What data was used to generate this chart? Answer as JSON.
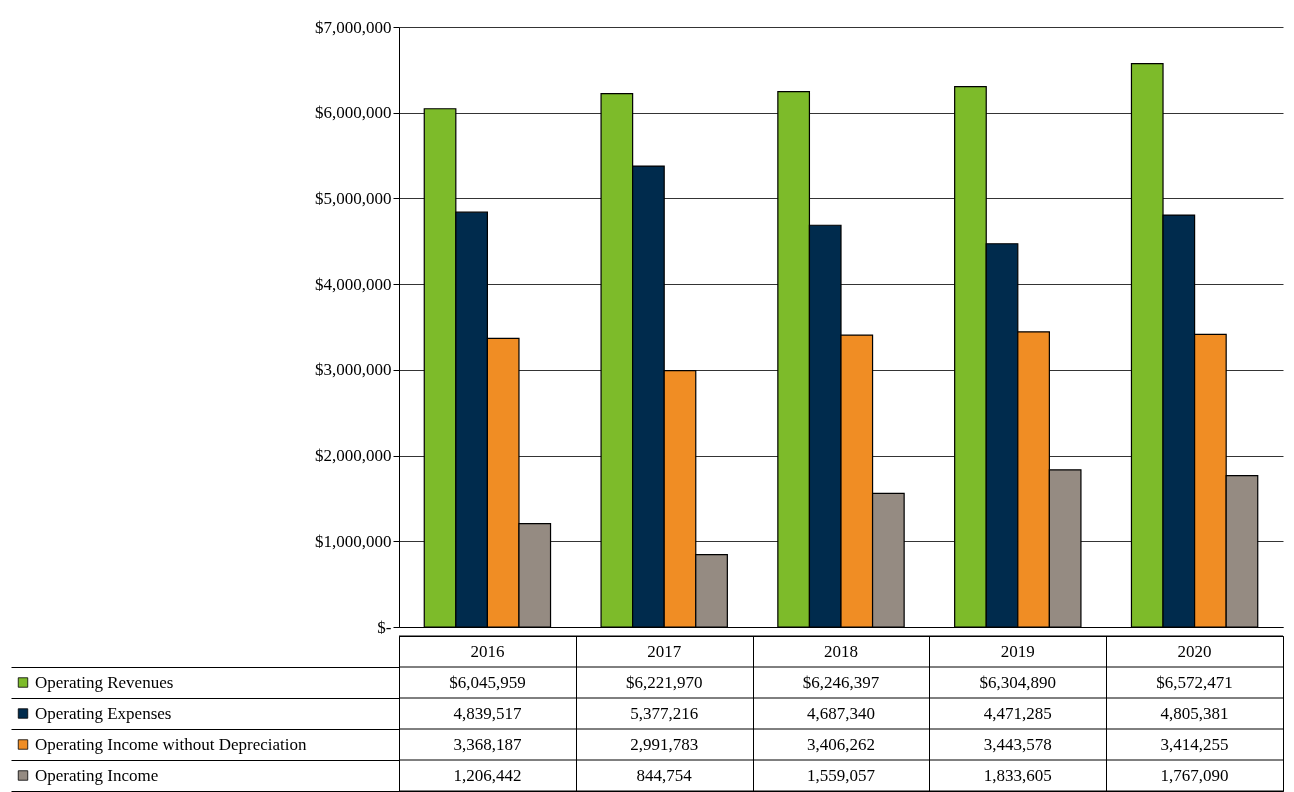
{
  "chart_data": {
    "type": "bar",
    "categories": [
      "2016",
      "2017",
      "2018",
      "2019",
      "2020"
    ],
    "series": [
      {
        "name": "Operating Revenues",
        "color": "#7dbb2a",
        "values": [
          6045959,
          6221970,
          6246397,
          6304890,
          6572471
        ],
        "value_labels": [
          "$6,045,959",
          "$6,221,970",
          "$6,246,397",
          "$6,304,890",
          "$6,572,471"
        ]
      },
      {
        "name": "Operating Expenses",
        "color": "#002b4d",
        "values": [
          4839517,
          5377216,
          4687340,
          4471285,
          4805381
        ],
        "value_labels": [
          "4,839,517",
          "5,377,216",
          "4,687,340",
          "4,471,285",
          "4,805,381"
        ]
      },
      {
        "name": "Operating Income without Depreciation",
        "color": "#f08d24",
        "values": [
          3368187,
          2991783,
          3406262,
          3443578,
          3414255
        ],
        "value_labels": [
          "3,368,187",
          "2,991,783",
          "3,406,262",
          "3,443,578",
          "3,414,255"
        ]
      },
      {
        "name": "Operating Income",
        "color": "#958b82",
        "values": [
          1206442,
          844754,
          1559057,
          1833605,
          1767090
        ],
        "value_labels": [
          "1,206,442",
          "844,754",
          "1,559,057",
          "1,833,605",
          "1,767,090"
        ]
      }
    ],
    "ylim": [
      0,
      7000000
    ],
    "yticks": [
      {
        "value": 0,
        "label": "$-"
      },
      {
        "value": 1000000,
        "label": "$1,000,000"
      },
      {
        "value": 2000000,
        "label": "$2,000,000"
      },
      {
        "value": 3000000,
        "label": "$3,000,000"
      },
      {
        "value": 4000000,
        "label": "$4,000,000"
      },
      {
        "value": 5000000,
        "label": "$5,000,000"
      },
      {
        "value": 6000000,
        "label": "$6,000,000"
      },
      {
        "value": 7000000,
        "label": "$7,000,000"
      }
    ],
    "grid": "y",
    "legend": "bottom"
  }
}
